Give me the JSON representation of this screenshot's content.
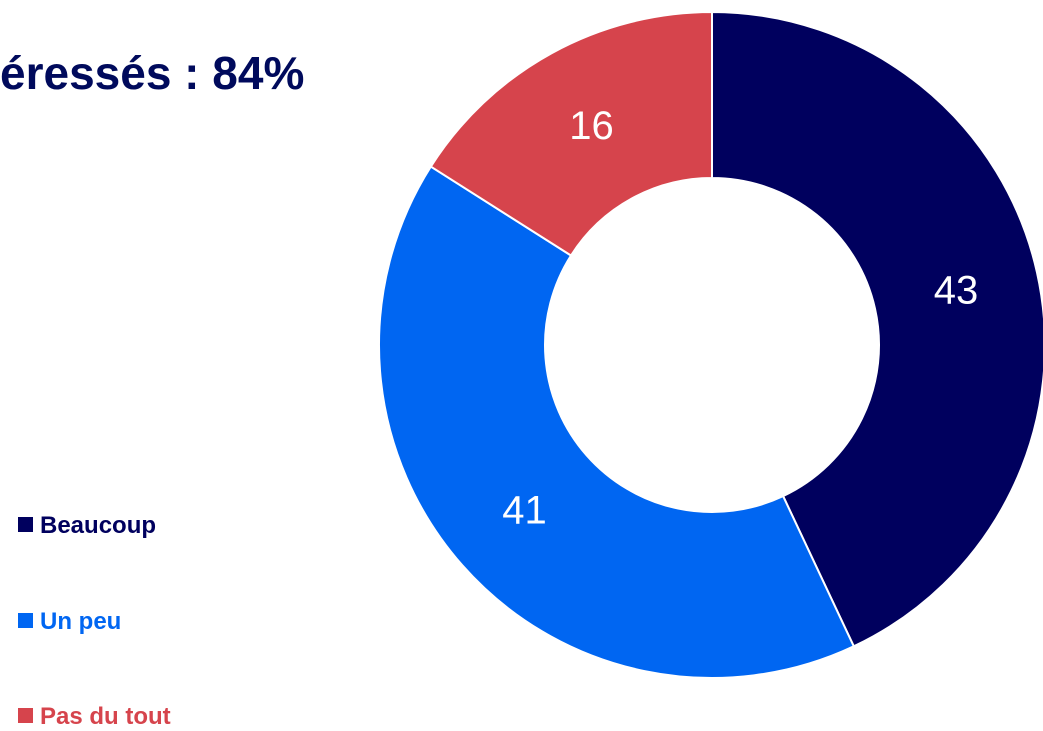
{
  "headline": "éressés : 84%",
  "chart_data": {
    "type": "pie",
    "variant": "donut",
    "categories": [
      "Beaucoup",
      "Un peu",
      "Pas du tout"
    ],
    "values": [
      43,
      41,
      16
    ],
    "data_labels": [
      "43",
      "41",
      "16"
    ],
    "colors": [
      "#00005e",
      "#0066f2",
      "#d6444c"
    ],
    "legend_placement": "left"
  }
}
